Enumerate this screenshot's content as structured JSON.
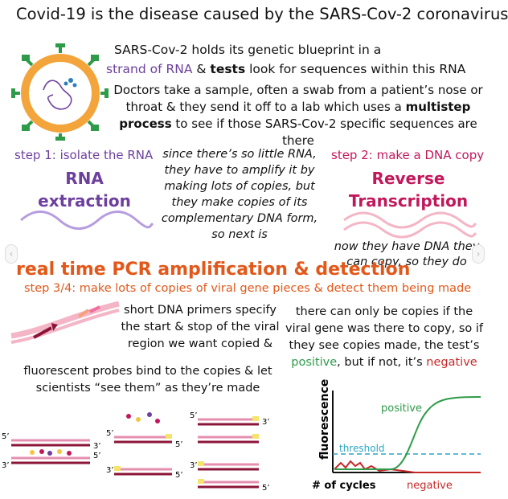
{
  "title": "Covid-19 is the disease caused by the SARS-Cov-2 coronavirus",
  "intro": {
    "line1": "SARS-Cov-2 holds its genetic blueprint in a",
    "strand": "strand of RNA",
    "amp": " & ",
    "tests": "tests",
    "rest": " look for sequences within this RNA",
    "doctors_a": "Doctors take a sample, often a swab from a patient’s nose or throat & they send it off to a lab which uses a ",
    "multistep": "multistep process",
    "doctors_b": " to see if those SARS-Cov-2 specific sequences are there"
  },
  "step1": {
    "label": "step 1: isolate the RNA",
    "name": "RNA extraction"
  },
  "middle_note": "since there’s so little RNA, they have to amplify it by making lots of copies, but they make copies of its complementary DNA form, so next is",
  "step2": {
    "label": "step 2: make a DNA copy",
    "name": "Reverse Transcription",
    "note": "now they have DNA they can copy, so they do"
  },
  "pcr": {
    "heading": "real time PCR amplification & detection",
    "step34": "step 3/4: make lots of copies of viral gene pieces & detect them being made",
    "primers": "short DNA primers specify the start & stop of the viral region we want copied &",
    "copies_a": "there can only be copies if the viral gene was there to copy, so if they see copies made, the test’s ",
    "positive_word": "positive",
    "copies_b": ", but if not, it’s ",
    "negative_word": "negative",
    "probes": "fluorescent probes bind to the copies & let scientists “see them” as they’re made"
  },
  "plot": {
    "ylabel": "fluorescence",
    "xlabel": "# of cycles",
    "positive": "positive",
    "negative": "negative",
    "threshold": "threshold"
  },
  "strand_labels": {
    "five": "5’",
    "three": "3’"
  },
  "colors": {
    "purple": "#6d3f9e",
    "pink": "#c2185b",
    "orange": "#e2581a",
    "green": "#2e9b49",
    "red": "#c62828",
    "threshold": "#2aa6c4"
  },
  "nav": {
    "left_icon": "chevron-left-icon",
    "right_icon": "chevron-right-icon"
  }
}
